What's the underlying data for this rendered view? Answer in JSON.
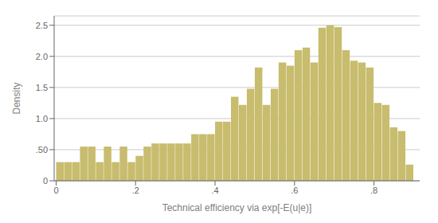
{
  "chart_data": {
    "type": "bar",
    "xlabel": "Technical efficiency via exp[-E(u|e)]",
    "ylabel": "Density",
    "x": [
      0.01,
      0.03,
      0.05,
      0.07,
      0.09,
      0.11,
      0.13,
      0.15,
      0.17,
      0.19,
      0.21,
      0.23,
      0.25,
      0.27,
      0.29,
      0.31,
      0.33,
      0.35,
      0.37,
      0.39,
      0.41,
      0.43,
      0.45,
      0.47,
      0.49,
      0.51,
      0.53,
      0.55,
      0.57,
      0.59,
      0.61,
      0.63,
      0.65,
      0.67,
      0.69,
      0.71,
      0.73,
      0.75,
      0.77,
      0.79,
      0.81,
      0.83,
      0.85,
      0.87,
      0.89
    ],
    "values": [
      0.3,
      0.3,
      0.3,
      0.55,
      0.55,
      0.3,
      0.55,
      0.3,
      0.55,
      0.3,
      0.4,
      0.55,
      0.6,
      0.6,
      0.6,
      0.6,
      0.6,
      0.75,
      0.75,
      0.75,
      0.95,
      0.95,
      1.35,
      1.22,
      1.48,
      1.82,
      1.22,
      1.48,
      1.9,
      1.85,
      2.1,
      2.14,
      1.9,
      2.46,
      2.5,
      2.47,
      2.1,
      1.93,
      1.9,
      1.82,
      1.25,
      1.22,
      0.86,
      0.8,
      0.26
    ],
    "color": "#C8BC6E",
    "xlim": [
      -0.005,
      0.915
    ],
    "ylim": [
      0,
      2.65
    ],
    "xticks": [
      0,
      {
        "value": 0.2,
        "label": ".2"
      },
      {
        "value": 0.4,
        "label": ".4"
      },
      {
        "value": 0.6,
        "label": ".6"
      },
      {
        "value": 0.8,
        "label": ".8"
      }
    ],
    "yticks": [
      0,
      {
        "value": 0.5,
        "label": ".50"
      },
      {
        "value": 1.0,
        "label": "1.0"
      },
      1.5,
      {
        "value": 2.0,
        "label": "2.0"
      },
      2.5
    ],
    "grid": true
  }
}
